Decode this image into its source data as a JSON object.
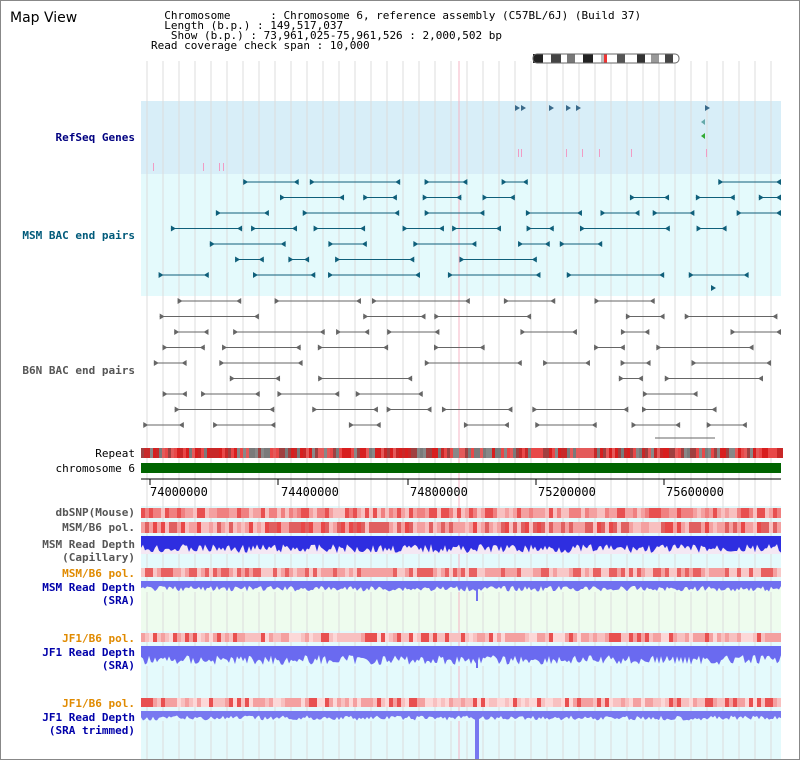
{
  "title": "Map View",
  "header": {
    "chromosome_label": "Chromosome",
    "chromosome_value": "Chromosome 6, reference assembly (C57BL/6J) (Build 37)",
    "length_label": "Length (b.p.)",
    "length_value": "149,517,037",
    "show_label": "Show (b.p.)",
    "show_value": "73,961,025-75,961,526 : 2,000,502 bp",
    "coverage_label": "Read coverage check span",
    "coverage_value": "10,000"
  },
  "tracks": {
    "refseq": "RefSeq Genes",
    "msm_bac": "MSM BAC end pairs",
    "b6n_bac": "B6N BAC end pairs",
    "repeat": "Repeat",
    "chromosome": "chromosome 6",
    "dbsnp": "dbSNP(Mouse)",
    "msm_b6_pol_1": "MSM/B6 pol.",
    "msm_read_cap_1": "MSM Read Depth",
    "msm_read_cap_2": "(Capillary)",
    "msm_b6_pol_2": "MSM/B6 pol.",
    "msm_read_sra_1": "MSM Read Depth",
    "msm_read_sra_2": "(SRA)",
    "jf1_b6_pol_1": "JF1/B6 pol.",
    "jf1_read_sra_1": "JF1 Read Depth",
    "jf1_read_sra_2": "(SRA)",
    "jf1_b6_pol_2": "JF1/B6 pol.",
    "jf1_read_trim_1": "JF1 Read Depth",
    "jf1_read_trim_2": "(SRA trimmed)"
  },
  "axis_ticks": [
    "74000000",
    "74400000",
    "74800000",
    "75200000",
    "75600000"
  ],
  "colors": {
    "refseq_label": "#000080",
    "msm_bac_label": "#005a7a",
    "b6n_bac_label": "#555555",
    "orange_label": "#e08a00",
    "blue_label": "#0000aa",
    "refseq_bg": "#d8eef8",
    "msm_bg": "#e4fafc",
    "chrom_green": "#006400",
    "depth_blue": "#2e2ee0"
  }
}
